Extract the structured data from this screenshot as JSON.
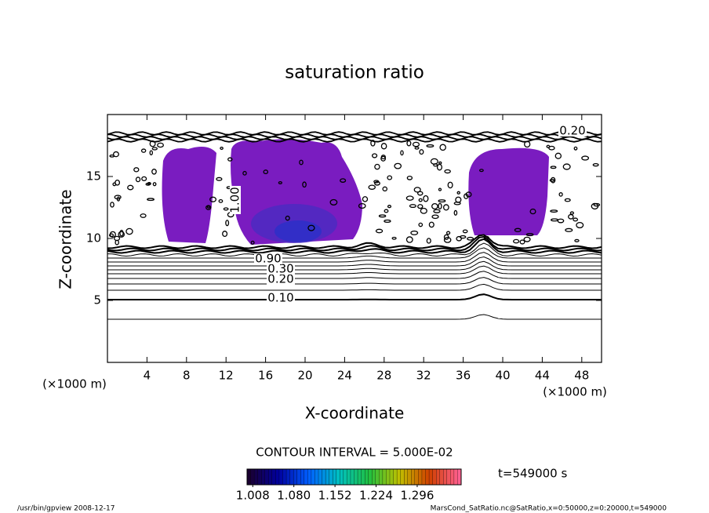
{
  "chart_data": {
    "type": "contour",
    "title": "saturation ratio",
    "xlabel": "X-coordinate",
    "ylabel": "Z-coordinate",
    "xunit": "(×1000 m)",
    "yunit": "(×1000 m)",
    "xlim": [
      0,
      50
    ],
    "xticks": [
      4,
      8,
      12,
      16,
      20,
      24,
      28,
      32,
      36,
      40,
      44,
      48
    ],
    "ylim": [
      0,
      20
    ],
    "yticks": [
      5,
      10,
      15
    ],
    "fill_color": "#7a1cc0",
    "contour_labels": [
      "0.10",
      "0.20",
      "0.30",
      "0.90",
      "1.00",
      "0.20"
    ],
    "contour_interval": "CONTOUR INTERVAL = 5.000E-02",
    "time": "t=549000 s",
    "colorbar": {
      "lim": [
        0.998,
        1.373
      ],
      "ticks": [
        1.008,
        {
          "value": 1.08,
          "label": "1.080"
        },
        1.152,
        1.224,
        1.296
      ],
      "colors": [
        "#1a0030",
        "#0000a0",
        "#0060ff",
        "#00c0c0",
        "#20c040",
        "#c0c000",
        "#d04000",
        "#ff6090"
      ]
    },
    "footer_left": "/usr/bin/gpview  2008-12-17",
    "footer_right": "MarsCond_SatRatio.nc@SatRatio,x=0:50000,z=0:20000,t=549000"
  }
}
